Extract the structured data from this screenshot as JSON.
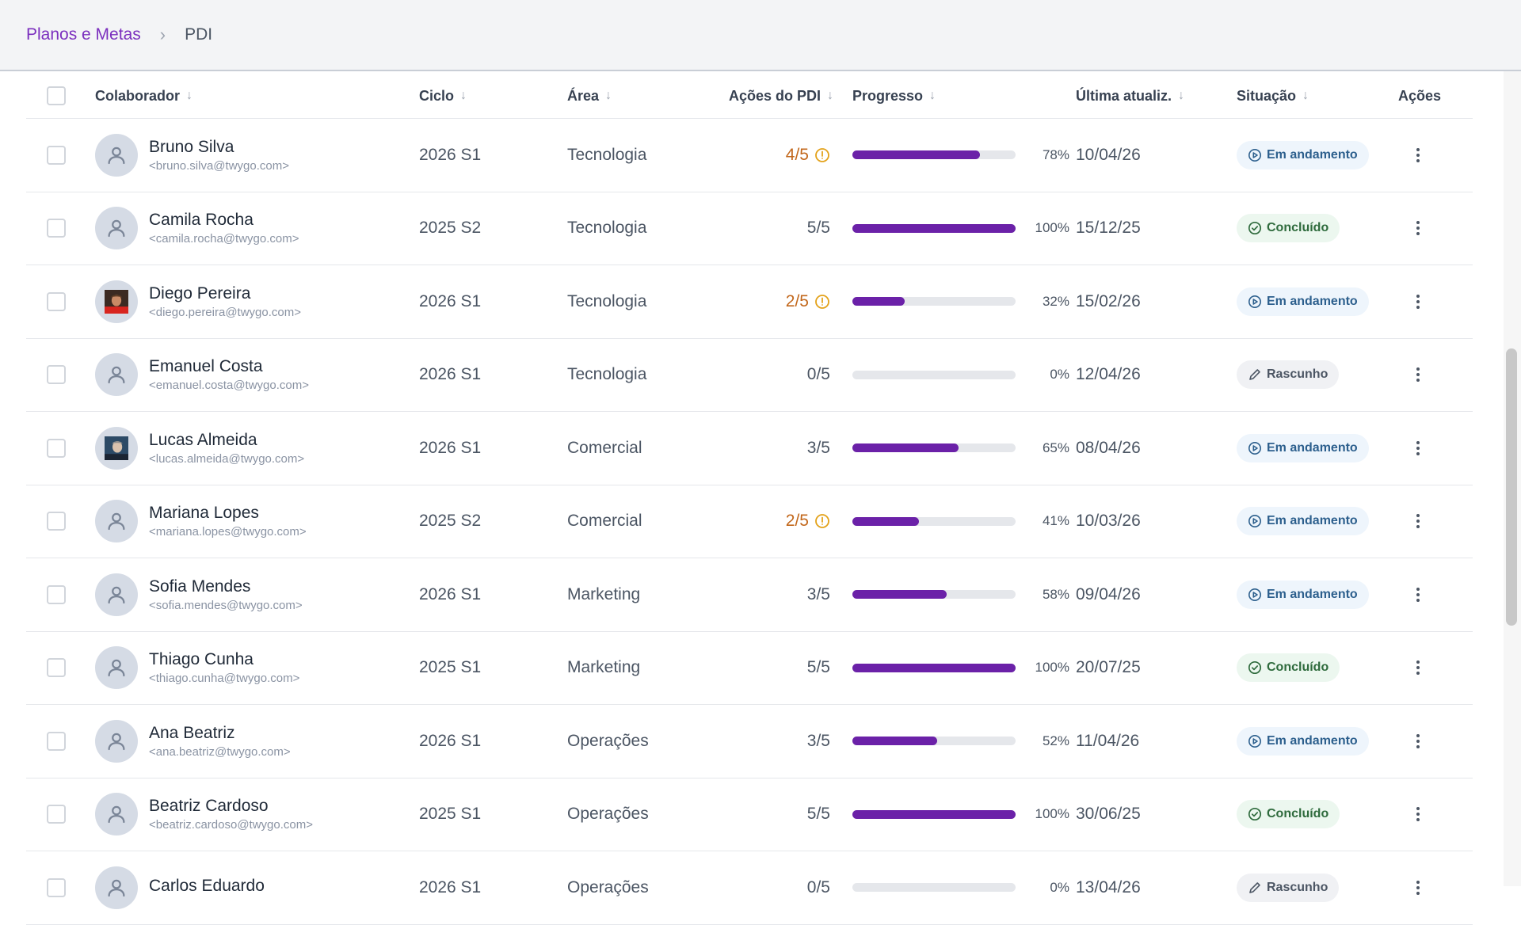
{
  "breadcrumb": {
    "parent": "Planos e Metas",
    "current": "PDI"
  },
  "columns": {
    "colaborador": "Colaborador",
    "ciclo": "Ciclo",
    "area": "Área",
    "acoes_pdi": "Ações do PDI",
    "progresso": "Progresso",
    "ultima": "Última atualiz.",
    "situacao": "Situação",
    "acoes": "Ações"
  },
  "status_labels": {
    "progress": "Em andamento",
    "done": "Concluído",
    "draft": "Rascunho"
  },
  "colors": {
    "accent": "#7b2fbe",
    "progress_fill": "#6b21a8",
    "warning": "#c2671b"
  },
  "rows": [
    {
      "name": "Bruno Silva",
      "email": "<bruno.silva@twygo.com>",
      "ciclo": "2026 S1",
      "area": "Tecnologia",
      "acoes": "4/5",
      "warn": true,
      "progress": 78,
      "pct": "78%",
      "date": "10/04/26",
      "status": "progress",
      "avatar": "user-icon"
    },
    {
      "name": "Camila Rocha",
      "email": "<camila.rocha@twygo.com>",
      "ciclo": "2025 S2",
      "area": "Tecnologia",
      "acoes": "5/5",
      "warn": false,
      "progress": 100,
      "pct": "100%",
      "date": "15/12/25",
      "status": "done",
      "avatar": "user-icon"
    },
    {
      "name": "Diego Pereira",
      "email": "<diego.pereira@twygo.com>",
      "ciclo": "2026 S1",
      "area": "Tecnologia",
      "acoes": "2/5",
      "warn": true,
      "progress": 32,
      "pct": "32%",
      "date": "15/02/26",
      "status": "progress",
      "avatar": "photo-red"
    },
    {
      "name": "Emanuel Costa",
      "email": "<emanuel.costa@twygo.com>",
      "ciclo": "2026 S1",
      "area": "Tecnologia",
      "acoes": "0/5",
      "warn": false,
      "progress": 0,
      "pct": "0%",
      "date": "12/04/26",
      "status": "draft",
      "avatar": "user-icon"
    },
    {
      "name": "Lucas Almeida",
      "email": "<lucas.almeida@twygo.com>",
      "ciclo": "2026 S1",
      "area": "Comercial",
      "acoes": "3/5",
      "warn": false,
      "progress": 65,
      "pct": "65%",
      "date": "08/04/26",
      "status": "progress",
      "avatar": "photo-blue"
    },
    {
      "name": "Mariana Lopes",
      "email": "<mariana.lopes@twygo.com>",
      "ciclo": "2025 S2",
      "area": "Comercial",
      "acoes": "2/5",
      "warn": true,
      "progress": 41,
      "pct": "41%",
      "date": "10/03/26",
      "status": "progress",
      "avatar": "user-icon"
    },
    {
      "name": "Sofia Mendes",
      "email": "<sofia.mendes@twygo.com>",
      "ciclo": "2026 S1",
      "area": "Marketing",
      "acoes": "3/5",
      "warn": false,
      "progress": 58,
      "pct": "58%",
      "date": "09/04/26",
      "status": "progress",
      "avatar": "user-icon"
    },
    {
      "name": "Thiago Cunha",
      "email": "<thiago.cunha@twygo.com>",
      "ciclo": "2025 S1",
      "area": "Marketing",
      "acoes": "5/5",
      "warn": false,
      "progress": 100,
      "pct": "100%",
      "date": "20/07/25",
      "status": "done",
      "avatar": "user-icon"
    },
    {
      "name": "Ana Beatriz",
      "email": "<ana.beatriz@twygo.com>",
      "ciclo": "2026 S1",
      "area": "Operações",
      "acoes": "3/5",
      "warn": false,
      "progress": 52,
      "pct": "52%",
      "date": "11/04/26",
      "status": "progress",
      "avatar": "user-icon"
    },
    {
      "name": "Beatriz Cardoso",
      "email": "<beatriz.cardoso@twygo.com>",
      "ciclo": "2025 S1",
      "area": "Operações",
      "acoes": "5/5",
      "warn": false,
      "progress": 100,
      "pct": "100%",
      "date": "30/06/25",
      "status": "done",
      "avatar": "user-icon"
    },
    {
      "name": "Carlos Eduardo",
      "email": "",
      "ciclo": "2026 S1",
      "area": "Operações",
      "acoes": "0/5",
      "warn": false,
      "progress": 0,
      "pct": "0%",
      "date": "13/04/26",
      "status": "draft",
      "avatar": "user-icon"
    }
  ]
}
